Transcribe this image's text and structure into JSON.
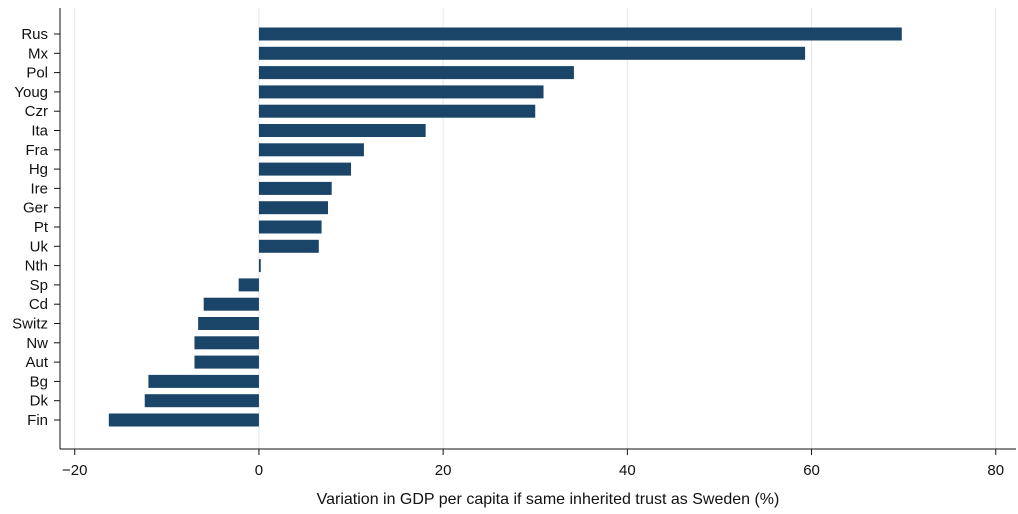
{
  "chart_data": {
    "type": "bar",
    "orientation": "horizontal",
    "categories": [
      "Rus",
      "Mx",
      "Pol",
      "Youg",
      "Czr",
      "Ita",
      "Fra",
      "Hg",
      "Ire",
      "Ger",
      "Pt",
      "Uk",
      "Nth",
      "Sp",
      "Cd",
      "Switz",
      "Nw",
      "Aut",
      "Bg",
      "Dk",
      "Fin"
    ],
    "values": [
      69.8,
      59.3,
      34.2,
      30.9,
      30.0,
      18.1,
      11.4,
      10.0,
      7.9,
      7.5,
      6.8,
      6.5,
      0.2,
      -2.2,
      -6.0,
      -6.6,
      -7.0,
      -7.0,
      -12.0,
      -12.4,
      -16.3
    ],
    "xlabel": "Variation in GDP per capita if same inherited trust as Sweden (%)",
    "xlim": [
      -21.6,
      82.2
    ],
    "xticks": [
      -20,
      0,
      20,
      40,
      60,
      80
    ],
    "xtick_labels": [
      "−20",
      "0",
      "20",
      "40",
      "60",
      "80"
    ],
    "grid": "vertical",
    "bar_color": "#1b4568",
    "grid_color": "#dfe9ee"
  }
}
